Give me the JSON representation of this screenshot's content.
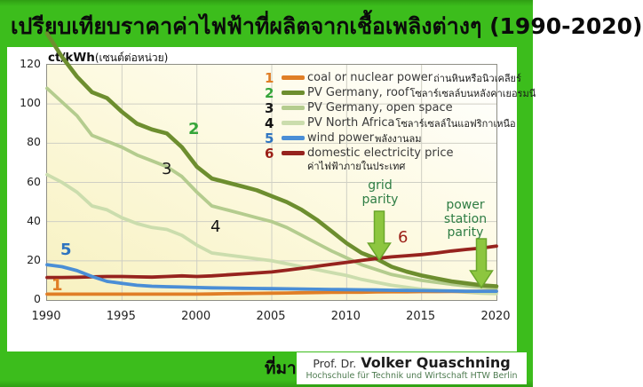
{
  "page": {
    "title": "เปรียบเทียบราคาค่าไฟฟ้าที่ผลิตจากเชื้อเพลิงต่างๆ (1990-2020)",
    "background_color": "#3cbd1c"
  },
  "footer": {
    "source_label": "ที่มา",
    "credit_prefix": "Prof. Dr.",
    "credit_name": "Volker Quaschning",
    "credit_affiliation": "Hochschule für Technik und Wirtschaft HTW Berlin"
  },
  "chart_data": {
    "type": "line",
    "title": "เปรียบเทียบราคาค่าไฟฟ้าที่ผลิตจากเชื้อเพลิงต่างๆ (1990-2020)",
    "ylabel_en": "ct/kWh",
    "ylabel_th": "(เซนต์ต่อหน่วย)",
    "xlim": [
      1990,
      2020
    ],
    "ylim": [
      0,
      120
    ],
    "xticks": [
      1990,
      1995,
      2000,
      2005,
      2010,
      2015,
      2020
    ],
    "yticks": [
      0,
      20,
      40,
      60,
      80,
      100,
      120
    ],
    "grid": true,
    "legend_position": "top-right",
    "x": [
      1990,
      1991,
      1992,
      1993,
      1994,
      1995,
      1996,
      1997,
      1998,
      1999,
      2000,
      2001,
      2002,
      2003,
      2004,
      2005,
      2006,
      2007,
      2008,
      2009,
      2010,
      2011,
      2012,
      2013,
      2014,
      2015,
      2016,
      2017,
      2018,
      2019,
      2020
    ],
    "series": [
      {
        "id": 1,
        "name": "coal or nuclear power",
        "name_th": "ถ่านหินหรือนิวเคลียร์",
        "color": "#e07e26",
        "label_color": "#e07e26",
        "values": [
          3,
          3,
          3,
          3,
          3,
          3,
          3,
          3,
          3,
          3,
          3,
          3.1,
          3.2,
          3.3,
          3.4,
          3.5,
          3.6,
          3.7,
          3.8,
          3.9,
          4,
          4,
          4.1,
          4.2,
          4.2,
          4.3,
          4.3,
          4.4,
          4.4,
          4.5,
          4.5
        ]
      },
      {
        "id": 2,
        "name": "PV Germany, roof",
        "name_th": "โซลาร์เซลล์บนหลังคาเยอรมนี",
        "color": "#6d8e2f",
        "label_color": "#35a53a",
        "values": [
          136,
          124,
          114,
          106,
          103,
          96,
          90,
          87,
          85,
          78,
          68,
          62,
          60,
          58,
          56,
          53,
          50,
          46,
          41,
          35,
          29,
          24,
          21,
          17,
          14.5,
          12.5,
          11,
          9.5,
          8.5,
          7.5,
          7
        ]
      },
      {
        "id": 3,
        "name": "PV Germany, open space",
        "name_th": "",
        "color": "#b4cc8e",
        "label_color": "#1a1a1a",
        "values": [
          108,
          101,
          94,
          84,
          81,
          78,
          74,
          71,
          68,
          63,
          55,
          48,
          46,
          44,
          42,
          40,
          37,
          33,
          29,
          25,
          21.5,
          18,
          15.5,
          13,
          11.5,
          10,
          9,
          8,
          7.2,
          6.5,
          6
        ]
      },
      {
        "id": 4,
        "name": "PV North Africa",
        "name_th": "โซลาร์เซลล์ในแอฟริกาเหนือ",
        "color": "#cbddad",
        "label_color": "#111111",
        "values": [
          64,
          60,
          55,
          48,
          46,
          42,
          39,
          37,
          36,
          33,
          28,
          24,
          23,
          22,
          21,
          20,
          18.5,
          17,
          15.5,
          14,
          12.5,
          10.5,
          9,
          7.5,
          6.5,
          5.5,
          5,
          4.5,
          4,
          3.5,
          3.2
        ]
      },
      {
        "id": 5,
        "name": "wind power",
        "name_th": "พลังงานลม",
        "color": "#4a8ed6",
        "label_color": "#2e74c0",
        "values": [
          18,
          17,
          15,
          12,
          9.5,
          8.5,
          7.5,
          7,
          6.8,
          6.6,
          6.4,
          6.2,
          6.1,
          6,
          5.9,
          5.8,
          5.7,
          5.6,
          5.5,
          5.4,
          5.3,
          5.2,
          5.1,
          5,
          4.9,
          4.8,
          4.7,
          4.6,
          4.5,
          4.5,
          4.5
        ]
      },
      {
        "id": 6,
        "name": "domestic electricity price",
        "name_th": "ค่าไฟฟ้าภายในประเทศ",
        "color": "#96231e",
        "label_color": "#9b1f17",
        "values": [
          11.5,
          11.5,
          11.6,
          11.8,
          12,
          12,
          11.8,
          11.7,
          12,
          12.3,
          12,
          12.3,
          12.8,
          13.3,
          13.8,
          14.3,
          15.2,
          16.2,
          17.2,
          18.2,
          19.2,
          20.2,
          21.2,
          22,
          22.6,
          23.2,
          24,
          25,
          25.8,
          26.5,
          27.5
        ]
      }
    ],
    "annotations": {
      "color": "#2e7d44",
      "arrow_fill": "#8dc63f",
      "arrow_stroke": "#6aa62b",
      "items": [
        {
          "label": "grid parity",
          "x": 2012
        },
        {
          "label": "power station parity",
          "x": 2019.5
        }
      ]
    }
  }
}
